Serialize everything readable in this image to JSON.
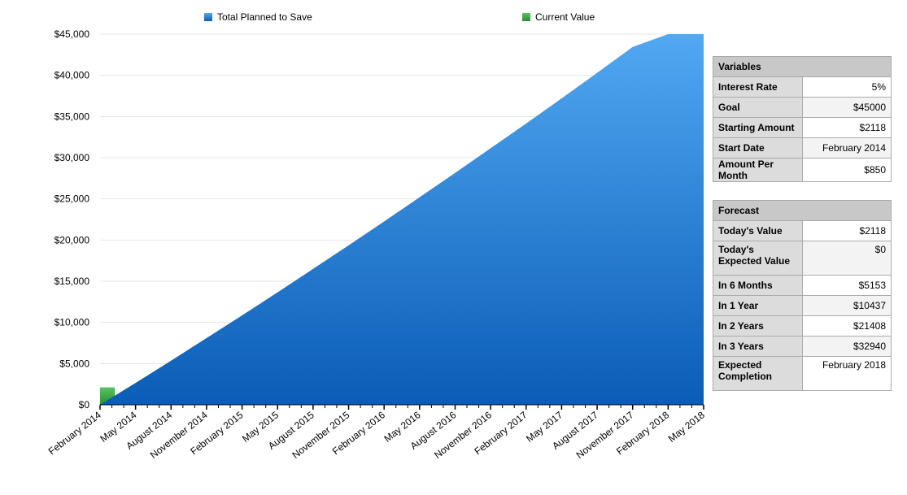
{
  "chart_data": {
    "type": "area",
    "title": "",
    "xlabel": "",
    "ylabel": "",
    "ylim": [
      0,
      45000
    ],
    "y_ticks": [
      "$0",
      "$5,000",
      "$10,000",
      "$15,000",
      "$20,000",
      "$25,000",
      "$30,000",
      "$35,000",
      "$40,000",
      "$45,000"
    ],
    "x_tick_labels": [
      "February 2014",
      "May 2014",
      "August 2014",
      "November 2014",
      "February 2015",
      "May 2015",
      "August 2015",
      "November 2015",
      "February 2016",
      "May 2016",
      "August 2016",
      "November 2016",
      "February 2017",
      "May 2017",
      "August 2017",
      "November 2017",
      "February 2018",
      "May 2018"
    ],
    "grid": true,
    "legend_position": "top",
    "series": [
      {
        "name": "Total Planned to Save",
        "color": "#3d8fe0",
        "x": [
          "February 2014",
          "May 2014",
          "August 2014",
          "November 2014",
          "February 2015",
          "May 2015",
          "August 2015",
          "November 2015",
          "February 2016",
          "May 2016",
          "August 2016",
          "November 2016",
          "February 2017",
          "May 2017",
          "August 2017",
          "November 2017",
          "February 2018",
          "May 2018"
        ],
        "values": [
          0,
          2650,
          5350,
          8100,
          10850,
          13650,
          16500,
          19350,
          22250,
          25200,
          28150,
          31150,
          34150,
          37200,
          40300,
          43450,
          45000,
          45000
        ]
      },
      {
        "name": "Current Value",
        "color": "#3daa47",
        "x": [
          "February 2014"
        ],
        "values": [
          2118
        ]
      }
    ]
  },
  "variables": {
    "title": "Variables",
    "rows": [
      {
        "label": "Interest Rate",
        "value": "5%"
      },
      {
        "label": "Goal",
        "value": "$45000"
      },
      {
        "label": "Starting Amount",
        "value": "$2118"
      },
      {
        "label": "Start Date",
        "value": "February 2014"
      },
      {
        "label": "Amount Per Month",
        "value": "$850"
      }
    ]
  },
  "forecast": {
    "title": "Forecast",
    "rows": [
      {
        "label": "Today's Value",
        "value": "$2118"
      },
      {
        "label": "Today's Expected Value",
        "value": "$0"
      },
      {
        "label": "In 6 Months",
        "value": "$5153"
      },
      {
        "label": "In 1 Year",
        "value": "$10437"
      },
      {
        "label": "In 2 Years",
        "value": "$21408"
      },
      {
        "label": "In 3 Years",
        "value": "$32940"
      },
      {
        "label": "Expected Completion",
        "value": "February 2018"
      }
    ]
  }
}
